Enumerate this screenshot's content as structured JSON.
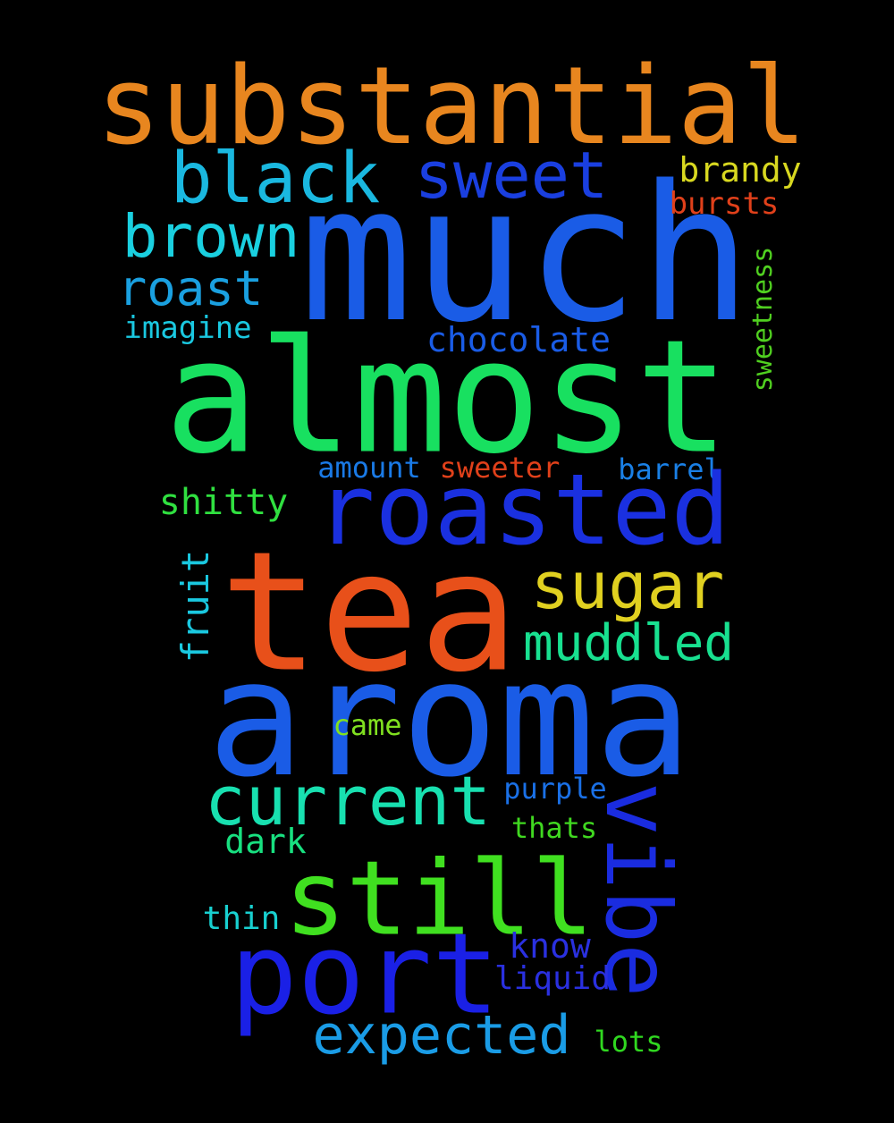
{
  "background": "#000000",
  "words": [
    {
      "text": "substantial",
      "color": "#e8861f"
    },
    {
      "text": "much",
      "color": "#1a5ce6"
    },
    {
      "text": "black",
      "color": "#1ab8e0"
    },
    {
      "text": "sweet",
      "color": "#1a3fe0"
    },
    {
      "text": "brandy",
      "color": "#d8d820"
    },
    {
      "text": "bursts",
      "color": "#e0401a"
    },
    {
      "text": "brown",
      "color": "#1ad0e0"
    },
    {
      "text": "roast",
      "color": "#1aa0e0"
    },
    {
      "text": "imagine",
      "color": "#1ac8e0"
    },
    {
      "text": "sweetness",
      "color": "#50d020"
    },
    {
      "text": "chocolate",
      "color": "#1a5ce6"
    },
    {
      "text": "almost",
      "color": "#18e060"
    },
    {
      "text": "amount",
      "color": "#1a7ae6"
    },
    {
      "text": "sweeter",
      "color": "#e0401a"
    },
    {
      "text": "barrel",
      "color": "#1a80e6"
    },
    {
      "text": "shitty",
      "color": "#30e040"
    },
    {
      "text": "roasted",
      "color": "#1a30e0"
    },
    {
      "text": "sugar",
      "color": "#e0d020"
    },
    {
      "text": "fruit",
      "color": "#1ac8e0"
    },
    {
      "text": "tea",
      "color": "#e8501a"
    },
    {
      "text": "muddled",
      "color": "#18e090"
    },
    {
      "text": "aroma",
      "color": "#1a5ce6"
    },
    {
      "text": "came",
      "color": "#80e020"
    },
    {
      "text": "current",
      "color": "#18e0b0"
    },
    {
      "text": "purple",
      "color": "#1a70e6"
    },
    {
      "text": "vibe",
      "color": "#1a2ce0"
    },
    {
      "text": "thats",
      "color": "#40d820"
    },
    {
      "text": "dark",
      "color": "#18e080"
    },
    {
      "text": "still",
      "color": "#40e020"
    },
    {
      "text": "thin",
      "color": "#18d0d0"
    },
    {
      "text": "know",
      "color": "#2a30e0"
    },
    {
      "text": "port",
      "color": "#1a20e6"
    },
    {
      "text": "liquid",
      "color": "#2a30e0"
    },
    {
      "text": "expected",
      "color": "#1a9ce6"
    },
    {
      "text": "lots",
      "color": "#30d820"
    }
  ]
}
